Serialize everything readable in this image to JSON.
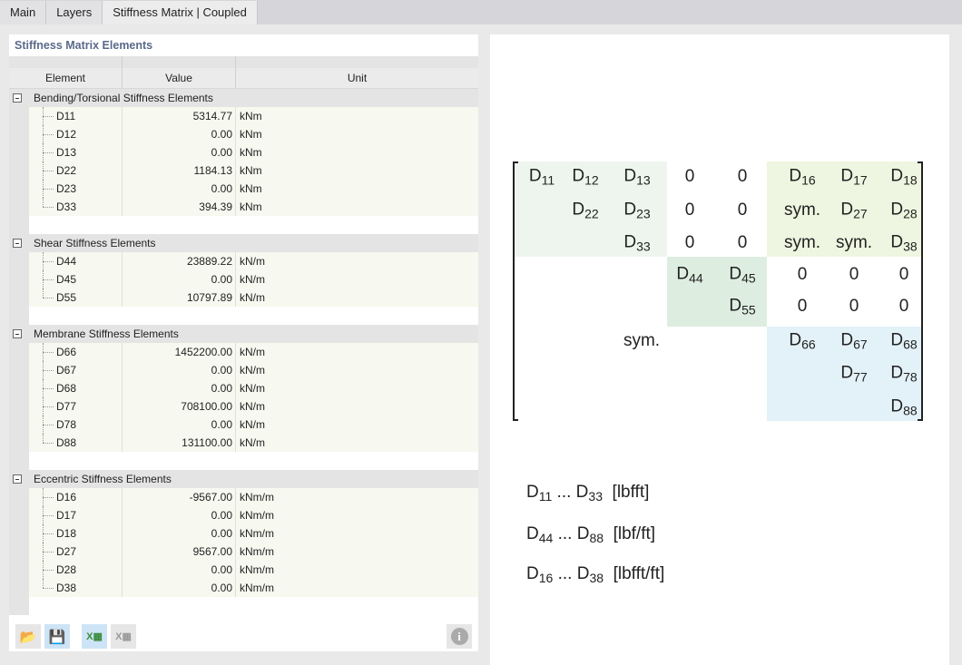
{
  "tabs": [
    {
      "label": "Main"
    },
    {
      "label": "Layers"
    },
    {
      "label": "Stiffness Matrix | Coupled",
      "active": true
    }
  ],
  "panel_title": "Stiffness Matrix Elements",
  "columns": {
    "element": "Element",
    "value": "Value",
    "unit": "Unit"
  },
  "groups": [
    {
      "label": "Bending/Torsional Stiffness Elements",
      "items": [
        {
          "element": "D11",
          "value": "5314.77",
          "unit": "kNm"
        },
        {
          "element": "D12",
          "value": "0.00",
          "unit": "kNm"
        },
        {
          "element": "D13",
          "value": "0.00",
          "unit": "kNm"
        },
        {
          "element": "D22",
          "value": "1184.13",
          "unit": "kNm"
        },
        {
          "element": "D23",
          "value": "0.00",
          "unit": "kNm"
        },
        {
          "element": "D33",
          "value": "394.39",
          "unit": "kNm"
        }
      ]
    },
    {
      "label": "Shear Stiffness Elements",
      "items": [
        {
          "element": "D44",
          "value": "23889.22",
          "unit": "kN/m"
        },
        {
          "element": "D45",
          "value": "0.00",
          "unit": "kN/m"
        },
        {
          "element": "D55",
          "value": "10797.89",
          "unit": "kN/m"
        }
      ]
    },
    {
      "label": "Membrane Stiffness Elements",
      "items": [
        {
          "element": "D66",
          "value": "1452200.00",
          "unit": "kN/m"
        },
        {
          "element": "D67",
          "value": "0.00",
          "unit": "kN/m"
        },
        {
          "element": "D68",
          "value": "0.00",
          "unit": "kN/m"
        },
        {
          "element": "D77",
          "value": "708100.00",
          "unit": "kN/m"
        },
        {
          "element": "D78",
          "value": "0.00",
          "unit": "kN/m"
        },
        {
          "element": "D88",
          "value": "131100.00",
          "unit": "kN/m"
        }
      ]
    },
    {
      "label": "Eccentric Stiffness Elements",
      "items": [
        {
          "element": "D16",
          "value": "-9567.00",
          "unit": "kNm/m"
        },
        {
          "element": "D17",
          "value": "0.00",
          "unit": "kNm/m"
        },
        {
          "element": "D18",
          "value": "0.00",
          "unit": "kNm/m"
        },
        {
          "element": "D27",
          "value": "9567.00",
          "unit": "kNm/m"
        },
        {
          "element": "D28",
          "value": "0.00",
          "unit": "kNm/m"
        },
        {
          "element": "D38",
          "value": "0.00",
          "unit": "kNm/m"
        }
      ]
    }
  ],
  "toolbar": [
    {
      "icon": "open-folder-icon"
    },
    {
      "icon": "save-edit-icon"
    },
    {
      "icon": "excel-export-icon"
    },
    {
      "icon": "excel-import-icon"
    },
    {
      "icon": "info-icon"
    }
  ],
  "matrix": {
    "rows": [
      [
        "D|11",
        "D|12",
        "D|13",
        "0",
        "0",
        "D|16",
        "D|17",
        "D|18"
      ],
      [
        "",
        "D|22",
        "D|23",
        "0",
        "0",
        "sym.",
        "D|27",
        "D|28"
      ],
      [
        "",
        "",
        "D|33",
        "0",
        "0",
        "sym.",
        "sym.",
        "D|38"
      ],
      [
        "",
        "",
        "",
        "D|44",
        "D|45",
        "0",
        "0",
        "0"
      ],
      [
        "",
        "",
        "",
        "",
        "D|55",
        "0",
        "0",
        "0"
      ],
      [
        "",
        "",
        "sym.",
        "",
        "",
        "D|66",
        "D|67",
        "D|68"
      ],
      [
        "",
        "",
        "",
        "",
        "",
        "",
        "D|77",
        "D|78"
      ],
      [
        "",
        "",
        "",
        "",
        "",
        "",
        "",
        "D|88"
      ]
    ],
    "colors": {
      "bending": "#edf5ee",
      "eccentric": "#eef5e0",
      "shear": "#ddeee0",
      "membrane": "#e3f1f8"
    }
  },
  "legend": [
    {
      "from": "11",
      "to": "33",
      "unit": "[lbfft]"
    },
    {
      "from": "44",
      "to": "88",
      "unit": "[lbf/ft]"
    },
    {
      "from": "16",
      "to": "38",
      "unit": "[lbfft/ft]"
    }
  ]
}
